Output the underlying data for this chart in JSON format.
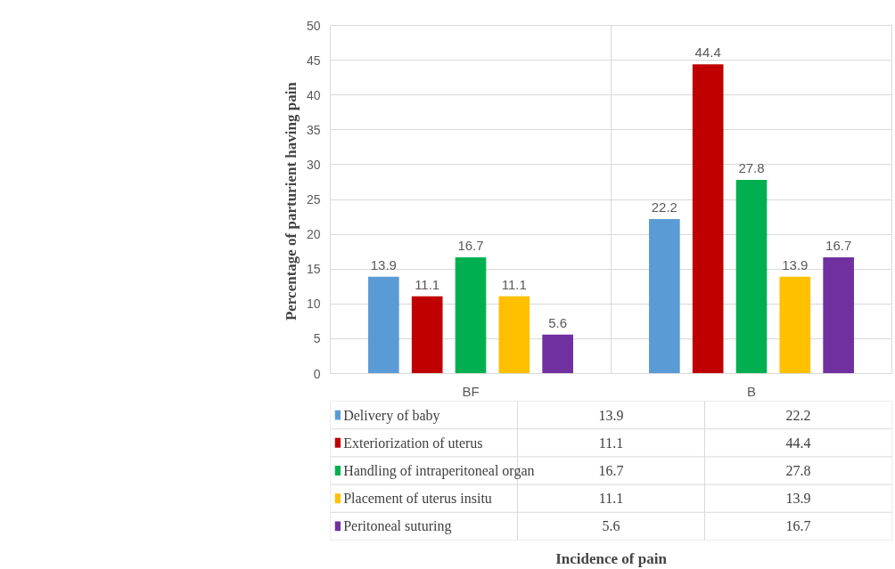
{
  "chart_data": {
    "type": "bar",
    "ylabel": "Percentage of parturient  having pain",
    "categories": [
      "BF",
      "B"
    ],
    "series": [
      {
        "name": "Delivery of baby",
        "color": "#5b9bd5",
        "values": [
          13.9,
          22.2
        ],
        "value_labels": [
          "13.9",
          "22.2"
        ]
      },
      {
        "name": "Exteriorization of uterus",
        "color": "#c00000",
        "values": [
          11.1,
          44.4
        ],
        "value_labels": [
          "11.1",
          "44.4"
        ]
      },
      {
        "name": "Handling of intraperitoneal organ",
        "color": "#00b050",
        "values": [
          16.7,
          27.8
        ],
        "value_labels": [
          "16.7",
          "27.8"
        ]
      },
      {
        "name": "Placement of uterus insitu",
        "color": "#ffc000",
        "values": [
          11.1,
          13.9
        ],
        "value_labels": [
          "11.1",
          "13.9"
        ]
      },
      {
        "name": "Peritoneal  suturing",
        "color": "#7030a0",
        "values": [
          5.6,
          16.7
        ],
        "value_labels": [
          "5.6",
          "16.7"
        ]
      }
    ],
    "annotations": [
      "Incidence of pain",
      "13.9",
      "22.2",
      "11.1",
      "44.4",
      "16.7",
      "27.8",
      "11.1",
      "13.9",
      "5.6",
      "16.7"
    ],
    "ylim": [
      0,
      50
    ],
    "yticks": [
      0,
      5,
      10,
      15,
      20,
      25,
      30,
      35,
      40,
      45,
      50
    ],
    "grid": "y",
    "legend": "bottom"
  }
}
